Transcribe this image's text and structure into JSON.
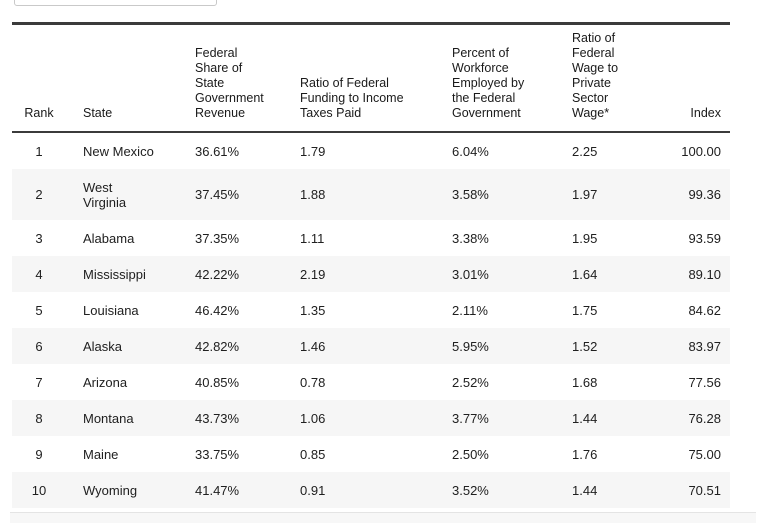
{
  "colors": {
    "rule_dark": "#3b3b3b",
    "row_stripe": "#f6f6f6",
    "text": "#202020",
    "partial_box_border": "#c9c9c9",
    "bottom_strip_bg": "#f7f7f7"
  },
  "table": {
    "columns": [
      {
        "key": "rank",
        "label": "Rank"
      },
      {
        "key": "state",
        "label": "State"
      },
      {
        "key": "fed_share",
        "label": "Federal\nShare of\nState\nGovernment\nRevenue"
      },
      {
        "key": "ratio_funding",
        "label": "Ratio of Federal\nFunding to Income\nTaxes Paid"
      },
      {
        "key": "pct_workforce",
        "label": "Percent of\nWorkforce\nEmployed by\nthe Federal\nGovernment"
      },
      {
        "key": "ratio_wage",
        "label": "Ratio of\nFederal\nWage to\nPrivate\nSector\nWage*"
      },
      {
        "key": "index",
        "label": "Index"
      }
    ],
    "rows": [
      {
        "rank": "1",
        "state": "New Mexico",
        "fed_share": "36.61%",
        "ratio_funding": "1.79",
        "pct_workforce": "6.04%",
        "ratio_wage": "2.25",
        "index": "100.00"
      },
      {
        "rank": "2",
        "state": "West\nVirginia",
        "fed_share": "37.45%",
        "ratio_funding": "1.88",
        "pct_workforce": "3.58%",
        "ratio_wage": "1.97",
        "index": "99.36"
      },
      {
        "rank": "3",
        "state": "Alabama",
        "fed_share": "37.35%",
        "ratio_funding": "1.11",
        "pct_workforce": "3.38%",
        "ratio_wage": "1.95",
        "index": "93.59"
      },
      {
        "rank": "4",
        "state": "Mississippi",
        "fed_share": "42.22%",
        "ratio_funding": "2.19",
        "pct_workforce": "3.01%",
        "ratio_wage": "1.64",
        "index": "89.10"
      },
      {
        "rank": "5",
        "state": "Louisiana",
        "fed_share": "46.42%",
        "ratio_funding": "1.35",
        "pct_workforce": "2.11%",
        "ratio_wage": "1.75",
        "index": "84.62"
      },
      {
        "rank": "6",
        "state": "Alaska",
        "fed_share": "42.82%",
        "ratio_funding": "1.46",
        "pct_workforce": "5.95%",
        "ratio_wage": "1.52",
        "index": "83.97"
      },
      {
        "rank": "7",
        "state": "Arizona",
        "fed_share": "40.85%",
        "ratio_funding": "0.78",
        "pct_workforce": "2.52%",
        "ratio_wage": "1.68",
        "index": "77.56"
      },
      {
        "rank": "8",
        "state": "Montana",
        "fed_share": "43.73%",
        "ratio_funding": "1.06",
        "pct_workforce": "3.77%",
        "ratio_wage": "1.44",
        "index": "76.28"
      },
      {
        "rank": "9",
        "state": "Maine",
        "fed_share": "33.75%",
        "ratio_funding": "0.85",
        "pct_workforce": "2.50%",
        "ratio_wage": "1.76",
        "index": "75.00"
      },
      {
        "rank": "10",
        "state": "Wyoming",
        "fed_share": "41.47%",
        "ratio_funding": "0.91",
        "pct_workforce": "3.52%",
        "ratio_wage": "1.44",
        "index": "70.51"
      }
    ]
  }
}
